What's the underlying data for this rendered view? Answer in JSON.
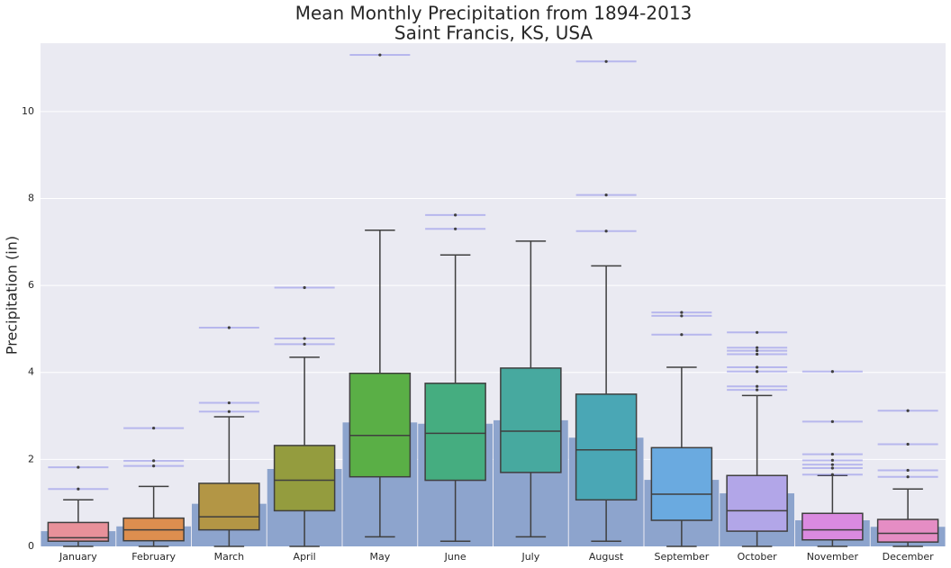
{
  "chart_data": {
    "type": "box",
    "title": "Mean Monthly Precipitation from 1894-2013",
    "subtitle": "Saint Francis, KS, USA",
    "ylabel": "Precipitation (in)",
    "categories": [
      "January",
      "February",
      "March",
      "April",
      "May",
      "June",
      "July",
      "August",
      "September",
      "October",
      "November",
      "December"
    ],
    "means": [
      0.35,
      0.46,
      0.98,
      1.78,
      2.85,
      2.82,
      2.9,
      2.5,
      1.53,
      1.22,
      0.6,
      0.45
    ],
    "mean_color": "#8da4cd",
    "colors": [
      "#e8919a",
      "#dd8e4f",
      "#b39645",
      "#949c3e",
      "#5aaf46",
      "#45ad80",
      "#47a99f",
      "#4aa7b5",
      "#6aaae0",
      "#b2a6e8",
      "#da8ae0",
      "#e58dc4"
    ],
    "boxes": [
      {
        "whislo": 0,
        "q1": 0.12,
        "med": 0.2,
        "q3": 0.55,
        "whishi": 1.07,
        "fliers": [
          1.32,
          1.82
        ]
      },
      {
        "whislo": 0,
        "q1": 0.13,
        "med": 0.38,
        "q3": 0.65,
        "whishi": 1.38,
        "fliers": [
          1.85,
          1.97,
          2.72
        ]
      },
      {
        "whislo": 0,
        "q1": 0.38,
        "med": 0.68,
        "q3": 1.45,
        "whishi": 2.98,
        "fliers": [
          3.1,
          3.3,
          5.03
        ]
      },
      {
        "whislo": 0,
        "q1": 0.82,
        "med": 1.52,
        "q3": 2.32,
        "whishi": 4.35,
        "fliers": [
          4.65,
          4.78,
          5.95
        ]
      },
      {
        "whislo": 0.22,
        "q1": 1.6,
        "med": 2.55,
        "q3": 3.98,
        "whishi": 7.27,
        "fliers": [
          11.3
        ]
      },
      {
        "whislo": 0.12,
        "q1": 1.52,
        "med": 2.6,
        "q3": 3.75,
        "whishi": 6.7,
        "fliers": [
          7.3,
          7.62
        ]
      },
      {
        "whislo": 0.22,
        "q1": 1.7,
        "med": 2.65,
        "q3": 4.1,
        "whishi": 7.02,
        "fliers": []
      },
      {
        "whislo": 0.12,
        "q1": 1.07,
        "med": 2.22,
        "q3": 3.5,
        "whishi": 6.45,
        "fliers": [
          7.25,
          8.08,
          11.15
        ]
      },
      {
        "whislo": 0,
        "q1": 0.6,
        "med": 1.2,
        "q3": 2.27,
        "whishi": 4.12,
        "fliers": [
          4.87,
          5.3,
          5.38
        ]
      },
      {
        "whislo": 0,
        "q1": 0.35,
        "med": 0.82,
        "q3": 1.63,
        "whishi": 3.47,
        "fliers": [
          3.6,
          3.68,
          4.02,
          4.12,
          4.42,
          4.5,
          4.57,
          4.92
        ]
      },
      {
        "whislo": 0,
        "q1": 0.15,
        "med": 0.38,
        "q3": 0.76,
        "whishi": 1.63,
        "fliers": [
          1.65,
          1.8,
          1.88,
          1.98,
          2.12,
          2.87,
          4.02
        ]
      },
      {
        "whislo": 0,
        "q1": 0.1,
        "med": 0.3,
        "q3": 0.62,
        "whishi": 1.32,
        "fliers": [
          1.6,
          1.75,
          2.35,
          3.12
        ]
      }
    ],
    "ylim": [
      0,
      11.57
    ],
    "yticks": [
      0,
      2,
      4,
      6,
      8,
      10
    ],
    "grid": true
  }
}
